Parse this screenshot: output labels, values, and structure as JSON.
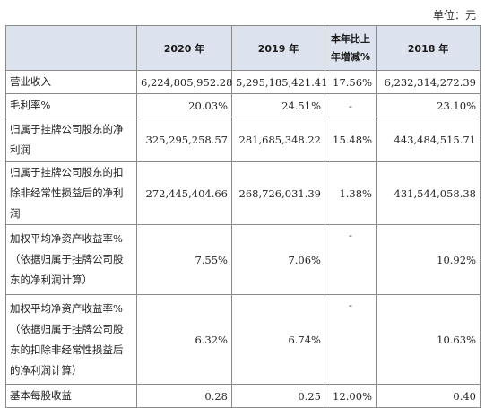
{
  "unit_label": "单位：元",
  "headers": {
    "col1": "",
    "col2": "2020 年",
    "col3": "2019 年",
    "col4_line1": "本年比上",
    "col4_line2": "年增减%",
    "col5": "2018 年"
  },
  "rows": [
    {
      "label": "营业收入",
      "v2020": "6,224,805,952.28",
      "v2019": "5,295,185,421.41",
      "change": "17.56%",
      "v2018": "6,232,314,272.39"
    },
    {
      "label": "毛利率%",
      "v2020": "20.03%",
      "v2019": "24.51%",
      "change": "-",
      "v2018": "23.10%"
    },
    {
      "label": "归属于挂牌公司股东的净利润",
      "v2020": "325,295,258.57",
      "v2019": "281,685,348.22",
      "change": "15.48%",
      "v2018": "443,484,515.71"
    },
    {
      "label": "归属于挂牌公司股东的扣除非经常性损益后的净利润",
      "v2020": "272,445,404.66",
      "v2019": "268,726,031.39",
      "change": "1.38%",
      "v2018": "431,544,058.38"
    },
    {
      "label": "加权平均净资产收益率%（依据归属于挂牌公司股东的净利润计算）",
      "v2020": "7.55%",
      "v2019": "7.06%",
      "change": "-",
      "v2018": "10.92%"
    },
    {
      "label": "加权平均净资产收益率%（依据归属于挂牌公司股东的扣除非经常性损益后的净利润计算）",
      "v2020": "6.32%",
      "v2019": "6.74%",
      "change": "-",
      "v2018": "10.63%"
    },
    {
      "label": "基本每股收益",
      "v2020": "0.28",
      "v2019": "0.25",
      "change": "12.00%",
      "v2018": "0.40"
    }
  ]
}
